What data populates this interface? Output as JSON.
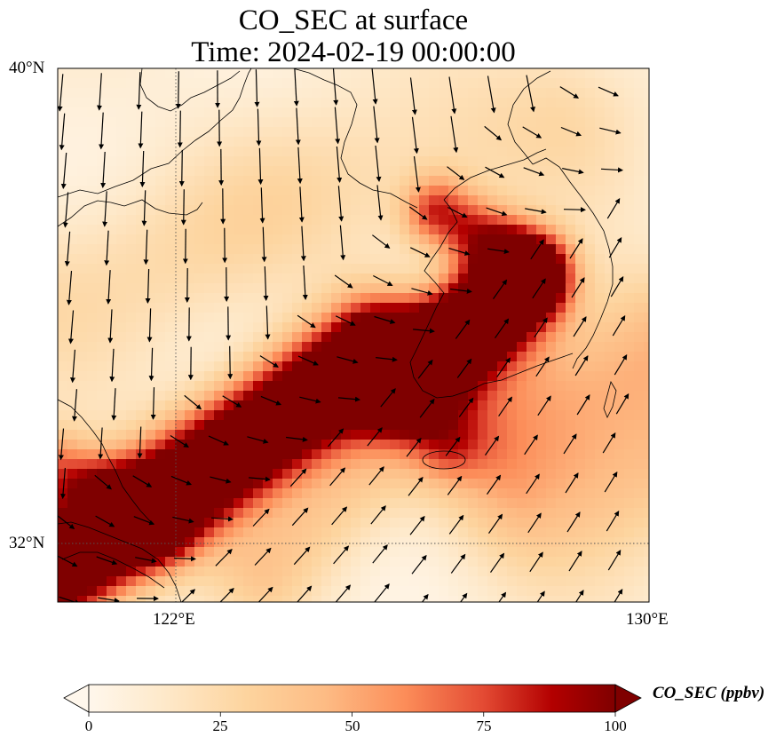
{
  "map": {
    "title_line1": "CO_SEC at surface",
    "title_line2": "Time: 2024-02-19 00:00:00",
    "variable": "CO_SEC",
    "level": "surface",
    "time": "2024-02-19 00:00:00",
    "extent": {
      "lon_min": 119.5,
      "lon_max": 130,
      "lat_min": 31,
      "lat_max": 40
    },
    "lat_ticks": [
      {
        "value": 40,
        "label": "40°N"
      },
      {
        "value": 32,
        "label": "32°N"
      }
    ],
    "lon_ticks": [
      {
        "value": 122,
        "label": "122°E"
      },
      {
        "value": 130,
        "label": "130°E"
      }
    ],
    "gridlines": true,
    "colormap": "OrRd",
    "colors": {
      "low": "#fff7ec",
      "mid": "#fc8d59",
      "high": "#7f0000",
      "coast": "#000000",
      "arrow": "#000000"
    },
    "features": [
      "coastline",
      "wind-vectors",
      "shaded-concentration"
    ]
  },
  "colorbar": {
    "label": "CO_SEC (ppbv)",
    "min": 0,
    "max": 100,
    "extend": "both",
    "ticks": [
      {
        "value": 0,
        "label": "0"
      },
      {
        "value": 25,
        "label": "25"
      },
      {
        "value": 50,
        "label": "50"
      },
      {
        "value": 75,
        "label": "75"
      },
      {
        "value": 100,
        "label": "100"
      }
    ]
  }
}
